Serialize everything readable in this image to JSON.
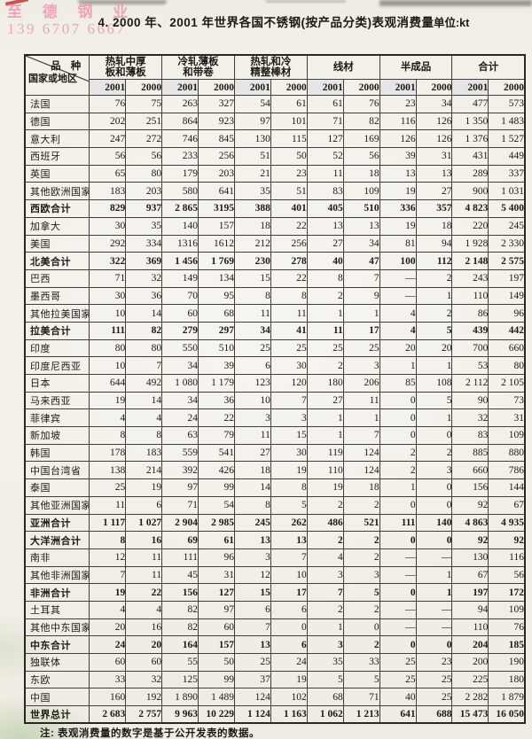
{
  "watermark": {
    "line1": "至 德 钢 业",
    "line2": "139 6707 6667",
    "color": "#ee9db5"
  },
  "header": {
    "title": "4. 2000 年、2001 年世界各国不锈钢(按产品分类)表观消费量",
    "unit": "单位:kt"
  },
  "table": {
    "corner": {
      "top": "品 种",
      "bottom": "国家或地区"
    },
    "groups": [
      {
        "line1": "热轧中厚",
        "line2": "板和薄板"
      },
      {
        "line1": "冷轧薄板",
        "line2": "和带卷"
      },
      {
        "line1": "热轧和冷",
        "line2": "精整棒材"
      },
      {
        "line1": "线材",
        "line2": ""
      },
      {
        "line1": "半成品",
        "line2": ""
      },
      {
        "line1": "合计",
        "line2": ""
      }
    ],
    "years": [
      "2001",
      "2000"
    ],
    "rows": [
      {
        "label": "法国",
        "bold": false,
        "values": [
          "76",
          "75",
          "263",
          "327",
          "54",
          "61",
          "61",
          "76",
          "23",
          "34",
          "477",
          "573"
        ]
      },
      {
        "label": "德国",
        "bold": false,
        "values": [
          "202",
          "251",
          "864",
          "923",
          "97",
          "101",
          "71",
          "82",
          "116",
          "126",
          "1 350",
          "1 483"
        ]
      },
      {
        "label": "意大利",
        "bold": false,
        "values": [
          "247",
          "272",
          "746",
          "845",
          "130",
          "115",
          "127",
          "169",
          "126",
          "126",
          "1 376",
          "1 527"
        ]
      },
      {
        "label": "西班牙",
        "bold": false,
        "values": [
          "56",
          "56",
          "233",
          "256",
          "51",
          "50",
          "52",
          "56",
          "39",
          "31",
          "431",
          "449"
        ]
      },
      {
        "label": "英国",
        "bold": false,
        "values": [
          "65",
          "80",
          "179",
          "203",
          "21",
          "23",
          "11",
          "18",
          "13",
          "13",
          "289",
          "337"
        ]
      },
      {
        "label": "其他欧洲国家",
        "bold": false,
        "values": [
          "183",
          "203",
          "580",
          "641",
          "35",
          "51",
          "83",
          "109",
          "19",
          "27",
          "900",
          "1 031"
        ]
      },
      {
        "label": "西欧合计",
        "bold": true,
        "values": [
          "829",
          "937",
          "2 865",
          "3195",
          "388",
          "401",
          "405",
          "510",
          "336",
          "357",
          "4 823",
          "5 400"
        ]
      },
      {
        "label": "加拿大",
        "bold": false,
        "values": [
          "30",
          "35",
          "140",
          "157",
          "18",
          "22",
          "13",
          "13",
          "19",
          "18",
          "220",
          "245"
        ]
      },
      {
        "label": "美国",
        "bold": false,
        "values": [
          "292",
          "334",
          "1316",
          "1612",
          "212",
          "256",
          "27",
          "34",
          "81",
          "94",
          "1 928",
          "2 330"
        ]
      },
      {
        "label": "北美合计",
        "bold": true,
        "values": [
          "322",
          "369",
          "1 456",
          "1 769",
          "230",
          "278",
          "40",
          "47",
          "100",
          "112",
          "2 148",
          "2 575"
        ]
      },
      {
        "label": "巴西",
        "bold": false,
        "values": [
          "71",
          "32",
          "149",
          "134",
          "15",
          "22",
          "8",
          "7",
          "—",
          "2",
          "243",
          "197"
        ]
      },
      {
        "label": "墨西哥",
        "bold": false,
        "values": [
          "30",
          "36",
          "70",
          "95",
          "8",
          "8",
          "2",
          "9",
          "—",
          "1",
          "110",
          "149"
        ]
      },
      {
        "label": "其他拉美国家",
        "bold": false,
        "values": [
          "10",
          "14",
          "60",
          "68",
          "11",
          "11",
          "1",
          "1",
          "4",
          "2",
          "86",
          "96"
        ]
      },
      {
        "label": "拉美合计",
        "bold": true,
        "values": [
          "111",
          "82",
          "279",
          "297",
          "34",
          "41",
          "11",
          "17",
          "4",
          "5",
          "439",
          "442"
        ]
      },
      {
        "label": "印度",
        "bold": false,
        "values": [
          "80",
          "80",
          "550",
          "510",
          "25",
          "25",
          "25",
          "25",
          "20",
          "20",
          "700",
          "660"
        ]
      },
      {
        "label": "印度尼西亚",
        "bold": false,
        "values": [
          "10",
          "7",
          "34",
          "39",
          "6",
          "30",
          "2",
          "3",
          "1",
          "1",
          "53",
          "80"
        ]
      },
      {
        "label": "日本",
        "bold": false,
        "values": [
          "644",
          "492",
          "1 080",
          "1 179",
          "123",
          "120",
          "180",
          "206",
          "85",
          "108",
          "2 112",
          "2 105"
        ]
      },
      {
        "label": "马来西亚",
        "bold": false,
        "values": [
          "19",
          "14",
          "34",
          "36",
          "10",
          "7",
          "27",
          "11",
          "0",
          "5",
          "90",
          "73"
        ]
      },
      {
        "label": "菲律宾",
        "bold": false,
        "values": [
          "4",
          "4",
          "24",
          "22",
          "3",
          "3",
          "1",
          "1",
          "0",
          "1",
          "32",
          "31"
        ]
      },
      {
        "label": "新加坡",
        "bold": false,
        "values": [
          "8",
          "8",
          "63",
          "79",
          "11",
          "15",
          "1",
          "7",
          "0",
          "0",
          "83",
          "109"
        ]
      },
      {
        "label": "韩国",
        "bold": false,
        "values": [
          "178",
          "183",
          "559",
          "541",
          "27",
          "30",
          "119",
          "124",
          "2",
          "2",
          "885",
          "880"
        ]
      },
      {
        "label": "中国台湾省",
        "bold": false,
        "values": [
          "138",
          "214",
          "392",
          "426",
          "18",
          "19",
          "110",
          "124",
          "2",
          "3",
          "660",
          "786"
        ]
      },
      {
        "label": "泰国",
        "bold": false,
        "values": [
          "25",
          "19",
          "97",
          "99",
          "14",
          "8",
          "19",
          "18",
          "1",
          "0",
          "156",
          "144"
        ]
      },
      {
        "label": "其他亚洲国家",
        "bold": false,
        "values": [
          "11",
          "6",
          "71",
          "54",
          "8",
          "5",
          "2",
          "2",
          "0",
          "0",
          "92",
          "67"
        ]
      },
      {
        "label": "亚洲合计",
        "bold": true,
        "values": [
          "1 117",
          "1 027",
          "2 904",
          "2 985",
          "245",
          "262",
          "486",
          "521",
          "111",
          "140",
          "4 863",
          "4 935"
        ]
      },
      {
        "label": "大洋洲合计",
        "bold": true,
        "values": [
          "8",
          "16",
          "69",
          "61",
          "13",
          "13",
          "2",
          "2",
          "0",
          "0",
          "92",
          "92"
        ]
      },
      {
        "label": "南非",
        "bold": false,
        "values": [
          "12",
          "11",
          "111",
          "96",
          "3",
          "7",
          "4",
          "2",
          "—",
          "—",
          "130",
          "116"
        ]
      },
      {
        "label": "其他非洲国家",
        "bold": false,
        "values": [
          "7",
          "11",
          "45",
          "31",
          "12",
          "10",
          "3",
          "3",
          "—",
          "1",
          "67",
          "56"
        ]
      },
      {
        "label": "非洲合计",
        "bold": true,
        "values": [
          "19",
          "22",
          "156",
          "127",
          "15",
          "17",
          "7",
          "5",
          "0",
          "1",
          "197",
          "172"
        ]
      },
      {
        "label": "土耳其",
        "bold": false,
        "values": [
          "4",
          "4",
          "82",
          "97",
          "6",
          "6",
          "2",
          "2",
          "—",
          "—",
          "94",
          "109"
        ]
      },
      {
        "label": "其他中东国家",
        "bold": false,
        "values": [
          "20",
          "16",
          "82",
          "60",
          "7",
          "0",
          "1",
          "0",
          "—",
          "—",
          "110",
          "76"
        ]
      },
      {
        "label": "中东合计",
        "bold": true,
        "values": [
          "24",
          "20",
          "164",
          "157",
          "13",
          "6",
          "3",
          "2",
          "0",
          "0",
          "204",
          "185"
        ]
      },
      {
        "label": "独联体",
        "bold": false,
        "values": [
          "60",
          "60",
          "55",
          "50",
          "25",
          "24",
          "35",
          "33",
          "25",
          "23",
          "200",
          "190"
        ]
      },
      {
        "label": "东欧",
        "bold": false,
        "values": [
          "33",
          "32",
          "125",
          "99",
          "37",
          "19",
          "5",
          "5",
          "25",
          "25",
          "225",
          "180"
        ]
      },
      {
        "label": "中国",
        "bold": false,
        "values": [
          "160",
          "192",
          "1 890",
          "1 489",
          "124",
          "102",
          "68",
          "71",
          "40",
          "25",
          "2 282",
          "1 879"
        ]
      },
      {
        "label": "世界总计",
        "bold": true,
        "values": [
          "2 683",
          "2 757",
          "9 963",
          "10 229",
          "1 124",
          "1 163",
          "1 062",
          "1 213",
          "641",
          "688",
          "15 473",
          "16 050"
        ]
      }
    ]
  },
  "note": "注: 表观消费量的数字是基于公开发表的数据。"
}
